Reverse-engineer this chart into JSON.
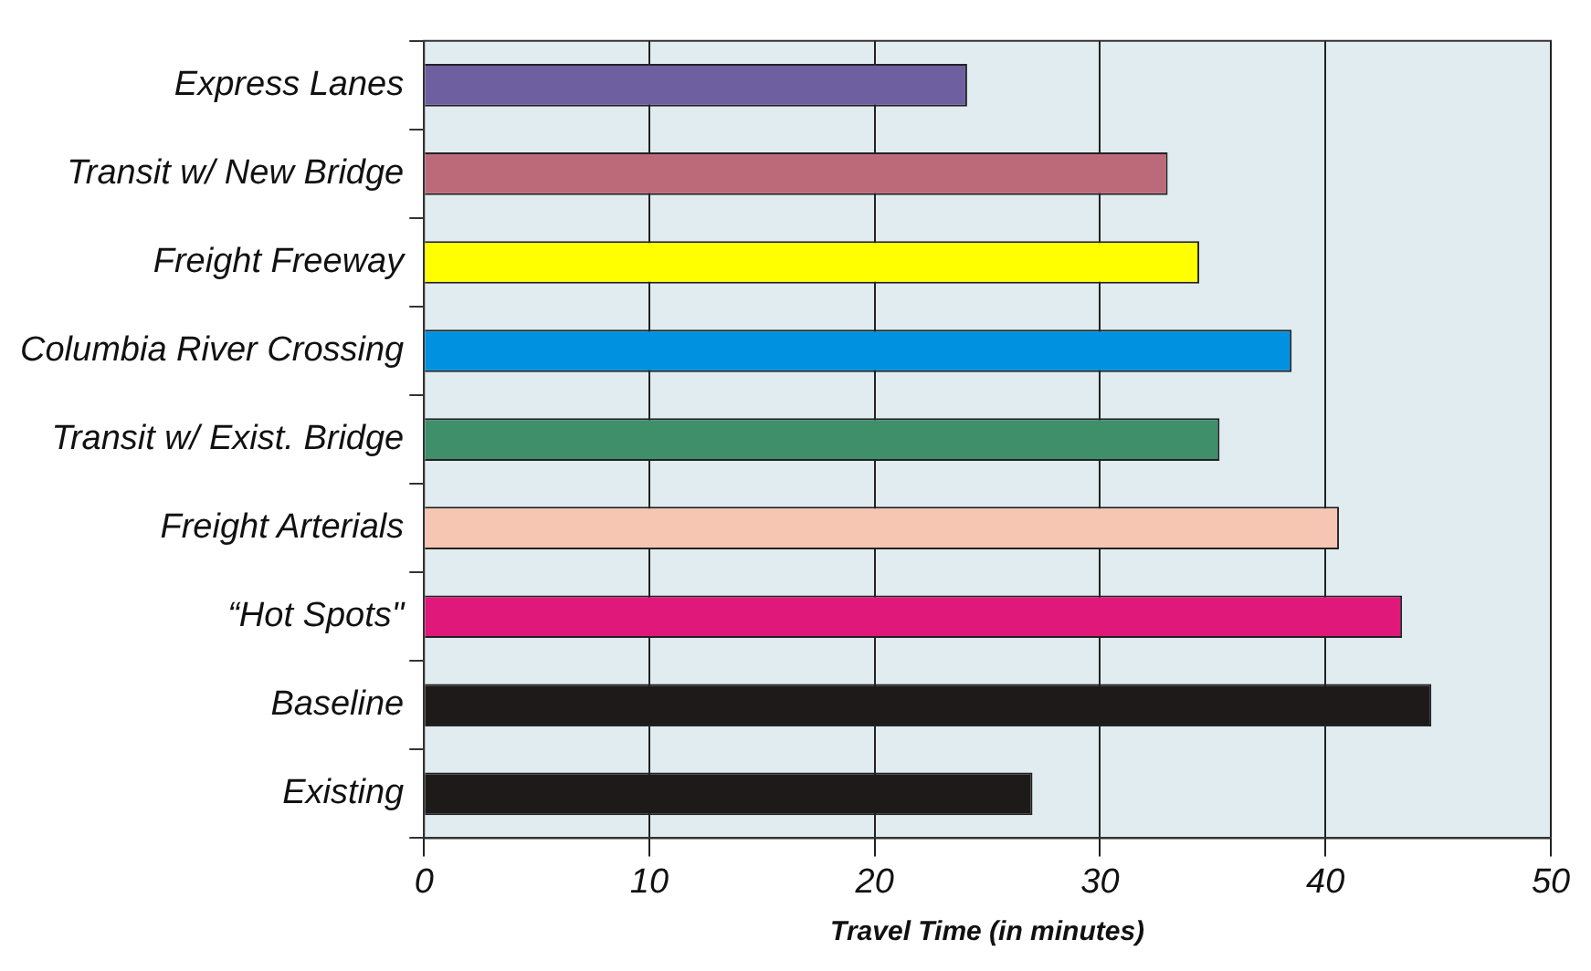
{
  "chart_data": {
    "type": "bar",
    "orientation": "horizontal",
    "xlabel": "Travel Time (in minutes)",
    "categories": [
      "Express Lanes",
      "Transit w/ New Bridge",
      "Freight Freeway",
      "Columbia River Crossing",
      "Transit w/ Exist. Bridge",
      "Freight Arterials",
      "“Hot Spots\"",
      "Baseline",
      "Existing"
    ],
    "values": [
      24.1,
      33.0,
      34.4,
      38.5,
      35.3,
      40.6,
      43.4,
      44.7,
      27.0
    ],
    "colors": [
      "#6e5fa0",
      "#bc6a7a",
      "#ffff00",
      "#0091e0",
      "#3f8f6b",
      "#f6c6b2",
      "#e0187a",
      "#1e1a1a",
      "#1e1a1a"
    ],
    "xlim": [
      0,
      50
    ],
    "xticks": [
      0,
      10,
      20,
      30,
      40,
      50
    ],
    "grid": "x",
    "legend": false
  }
}
